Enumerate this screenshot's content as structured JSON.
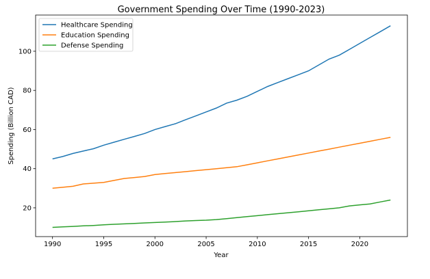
{
  "chart_data": {
    "type": "line",
    "title": "Government Spending Over Time (1990-2023)",
    "xlabel": "Year",
    "ylabel": "Spending (Billion CAD)",
    "xlim": [
      1988.35,
      2024.65
    ],
    "ylim": [
      5.3,
      118.5
    ],
    "xticks": [
      1990,
      1995,
      2000,
      2005,
      2010,
      2015,
      2020
    ],
    "yticks": [
      20,
      40,
      60,
      80,
      100
    ],
    "grid": false,
    "legend_position": "top-left",
    "x": [
      1990,
      1991,
      1992,
      1993,
      1994,
      1995,
      1996,
      1997,
      1998,
      1999,
      2000,
      2001,
      2002,
      2003,
      2004,
      2005,
      2006,
      2007,
      2008,
      2009,
      2010,
      2011,
      2012,
      2013,
      2014,
      2015,
      2016,
      2017,
      2018,
      2019,
      2020,
      2021,
      2022,
      2023
    ],
    "series": [
      {
        "name": "Healthcare Spending",
        "color": "#1f77b4",
        "values": [
          45,
          46.2,
          47.8,
          49,
          50.2,
          52,
          53.5,
          55,
          56.5,
          58,
          60,
          61.5,
          63,
          65,
          67,
          69,
          71,
          73.5,
          75,
          77,
          79.5,
          82,
          84,
          86,
          88,
          90,
          93,
          96,
          98,
          101,
          104,
          107,
          110,
          113
        ]
      },
      {
        "name": "Education Spending",
        "color": "#ff7f0e",
        "values": [
          30,
          30.5,
          31,
          32.2,
          32.6,
          33,
          34,
          35,
          35.5,
          36,
          37,
          37.5,
          38,
          38.5,
          39,
          39.5,
          40,
          40.5,
          41,
          42,
          43,
          44,
          45,
          46,
          47,
          48,
          49,
          50,
          51,
          52,
          53,
          54,
          55,
          56
        ]
      },
      {
        "name": "Defense Spending",
        "color": "#2ca02c",
        "values": [
          10,
          10.3,
          10.5,
          10.8,
          11,
          11.3,
          11.6,
          11.8,
          12,
          12.3,
          12.5,
          12.7,
          13,
          13.3,
          13.5,
          13.7,
          14,
          14.5,
          15,
          15.5,
          16,
          16.5,
          17,
          17.5,
          18,
          18.5,
          19,
          19.5,
          20,
          21,
          21.5,
          22,
          23,
          24
        ]
      }
    ]
  }
}
